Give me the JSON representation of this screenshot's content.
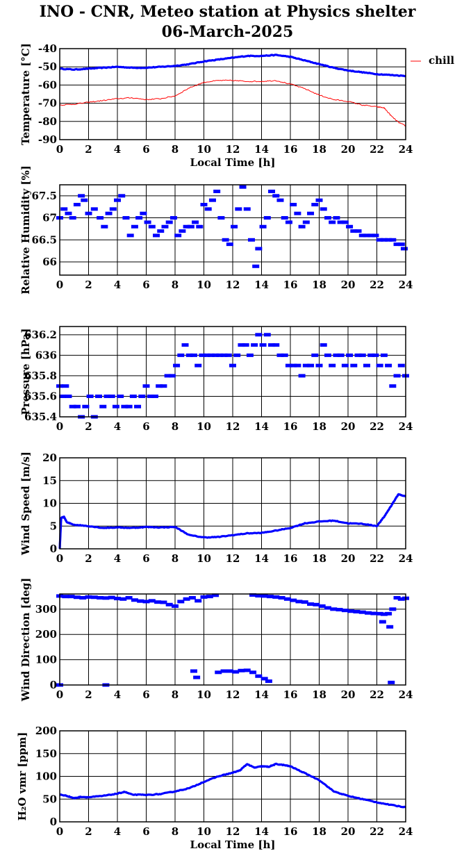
{
  "figure": {
    "title_line1": "INO - CNR, Meteo station at Physics shelter",
    "title_line2": "06-March-2025"
  },
  "colors": {
    "main_series": "#0000ff",
    "chill_series": "#ff0000",
    "grid": "#000000"
  },
  "chart_data": [
    {
      "type": "line",
      "ylabel": "Temperature [°C]",
      "xlabel": "Local Time [h]",
      "xlim": [
        0,
        24
      ],
      "ylim": [
        -90,
        -40
      ],
      "xticks": [
        0,
        2,
        4,
        6,
        8,
        10,
        12,
        14,
        16,
        18,
        20,
        22,
        24
      ],
      "yticks": [
        -90,
        -80,
        -70,
        -60,
        -50,
        -40
      ],
      "grid": true,
      "legend": "right",
      "series": [
        {
          "name": "",
          "color": "#0000ff",
          "style": "thick",
          "x": [
            0,
            1,
            2,
            3,
            4,
            5,
            6,
            7,
            8,
            9,
            10,
            11,
            12,
            13,
            14,
            15,
            16,
            17,
            18,
            19,
            20,
            21,
            22,
            23,
            24
          ],
          "y": [
            -51,
            -51.5,
            -51,
            -50.5,
            -50,
            -50.5,
            -50.5,
            -50,
            -49.5,
            -48.5,
            -47,
            -46,
            -45,
            -44,
            -44,
            -43.5,
            -44.5,
            -46.5,
            -48.5,
            -50.5,
            -52,
            -53,
            -54,
            -54.5,
            -55
          ]
        },
        {
          "name": "chill",
          "color": "#ff0000",
          "style": "thin",
          "x": [
            0,
            1,
            2,
            3,
            4,
            5,
            6,
            7,
            8,
            9,
            10,
            11,
            12,
            13,
            14,
            15,
            16,
            17,
            18,
            19,
            20,
            21,
            22,
            22.5,
            23,
            23.5,
            24
          ],
          "y": [
            -71,
            -70.5,
            -69.5,
            -68.5,
            -67.5,
            -67,
            -68,
            -67.5,
            -66,
            -61.5,
            -58.5,
            -57.5,
            -57.5,
            -58,
            -58,
            -57.5,
            -59.5,
            -62,
            -65.5,
            -68,
            -69,
            -71,
            -72,
            -72.5,
            -77,
            -80.5,
            -82.5
          ]
        }
      ]
    },
    {
      "type": "scatter",
      "ylabel": "Relative Humidity [%]",
      "xlim": [
        0,
        24
      ],
      "ylim": [
        65.7,
        67.75
      ],
      "xticks": [
        0,
        2,
        4,
        6,
        8,
        10,
        12,
        14,
        16,
        18,
        20,
        22,
        24
      ],
      "yticks": [
        66,
        66.5,
        67,
        67.5
      ],
      "ytick_labels": [
        "66",
        "66.5",
        "67",
        "67.5"
      ],
      "grid": true,
      "series": [
        {
          "name": "",
          "color": "#0000ff",
          "x": [
            0,
            0.3,
            0.6,
            0.9,
            1.2,
            1.5,
            1.7,
            2.0,
            2.4,
            2.8,
            3.1,
            3.4,
            3.7,
            4.0,
            4.3,
            4.6,
            4.9,
            5.2,
            5.5,
            5.8,
            6.1,
            6.4,
            6.7,
            7.0,
            7.3,
            7.6,
            7.9,
            8.2,
            8.5,
            8.8,
            9.1,
            9.4,
            9.7,
            10.0,
            10.3,
            10.6,
            10.9,
            11.2,
            11.5,
            11.8,
            12.1,
            12.4,
            12.7,
            13.0,
            13.3,
            13.6,
            13.8,
            14.1,
            14.4,
            14.7,
            15.0,
            15.3,
            15.6,
            15.9,
            16.2,
            16.5,
            16.8,
            17.1,
            17.4,
            17.7,
            18.0,
            18.3,
            18.6,
            18.9,
            19.2,
            19.5,
            19.8,
            20.1,
            20.4,
            20.7,
            21.0,
            21.3,
            21.6,
            21.9,
            22.2,
            22.5,
            22.8,
            23.1,
            23.4,
            23.7,
            23.9
          ],
          "y": [
            67.0,
            67.2,
            67.1,
            67.0,
            67.3,
            67.5,
            67.4,
            67.1,
            67.2,
            67.0,
            66.8,
            67.1,
            67.2,
            67.4,
            67.5,
            67.0,
            66.6,
            66.8,
            67.0,
            67.1,
            66.9,
            66.8,
            66.6,
            66.7,
            66.8,
            66.9,
            67.0,
            66.6,
            66.7,
            66.8,
            66.8,
            66.9,
            66.8,
            67.3,
            67.2,
            67.4,
            67.6,
            67.0,
            66.5,
            66.4,
            66.8,
            67.2,
            67.7,
            67.2,
            66.5,
            65.9,
            66.3,
            66.8,
            67.0,
            67.6,
            67.5,
            67.4,
            67.0,
            66.9,
            67.3,
            67.1,
            66.8,
            66.9,
            67.1,
            67.3,
            67.4,
            67.2,
            67.0,
            66.9,
            67.0,
            66.9,
            66.9,
            66.8,
            66.7,
            66.7,
            66.6,
            66.6,
            66.6,
            66.6,
            66.5,
            66.5,
            66.5,
            66.5,
            66.4,
            66.4,
            66.3
          ]
        }
      ]
    },
    {
      "type": "scatter",
      "ylabel": "Pressure [hPa]",
      "xlim": [
        0,
        24
      ],
      "ylim": [
        635.4,
        636.28
      ],
      "xticks": [
        0,
        2,
        4,
        6,
        8,
        10,
        12,
        14,
        16,
        18,
        20,
        22,
        24
      ],
      "yticks": [
        635.4,
        635.6,
        635.8,
        636,
        636.2
      ],
      "ytick_labels": [
        "635.4",
        "635.6",
        "635.8",
        "636",
        "636.2"
      ],
      "grid": true,
      "series": [
        {
          "name": "",
          "color": "#0000ff",
          "x": [
            0.0,
            0.2,
            0.4,
            0.6,
            0.9,
            1.2,
            1.5,
            1.8,
            2.1,
            2.4,
            2.7,
            3.0,
            3.3,
            3.6,
            3.9,
            4.2,
            4.5,
            4.8,
            5.1,
            5.4,
            5.7,
            6.0,
            6.3,
            6.6,
            6.9,
            7.2,
            7.5,
            7.8,
            8.1,
            8.4,
            8.7,
            9.0,
            9.3,
            9.6,
            9.9,
            10.2,
            10.5,
            10.8,
            11.1,
            11.4,
            11.7,
            12.0,
            12.3,
            12.6,
            12.9,
            13.2,
            13.5,
            13.8,
            14.1,
            14.4,
            14.7,
            15.0,
            15.3,
            15.6,
            15.9,
            16.2,
            16.5,
            16.8,
            17.1,
            17.4,
            17.7,
            18.0,
            18.3,
            18.6,
            18.9,
            19.2,
            19.5,
            19.8,
            20.1,
            20.4,
            20.7,
            21.0,
            21.3,
            21.6,
            21.9,
            22.2,
            22.5,
            22.8,
            23.1,
            23.4,
            23.7,
            24.0
          ],
          "y": [
            635.7,
            635.6,
            635.7,
            635.6,
            635.5,
            635.5,
            635.4,
            635.5,
            635.6,
            635.4,
            635.6,
            635.5,
            635.6,
            635.6,
            635.5,
            635.6,
            635.5,
            635.5,
            635.6,
            635.5,
            635.6,
            635.7,
            635.6,
            635.6,
            635.7,
            635.7,
            635.8,
            635.8,
            635.9,
            636.0,
            636.1,
            636.0,
            636.0,
            635.9,
            636.0,
            636.0,
            636.0,
            636.0,
            636.0,
            636.0,
            636.0,
            635.9,
            636.0,
            636.1,
            636.1,
            636.0,
            636.1,
            636.2,
            636.1,
            636.2,
            636.1,
            636.1,
            636.0,
            636.0,
            635.9,
            635.9,
            635.9,
            635.8,
            635.9,
            635.9,
            636.0,
            635.9,
            636.1,
            636.0,
            635.9,
            636.0,
            636.0,
            635.9,
            636.0,
            635.9,
            636.0,
            636.0,
            635.9,
            636.0,
            636.0,
            635.9,
            636.0,
            635.9,
            635.7,
            635.8,
            635.9,
            635.8
          ]
        }
      ]
    },
    {
      "type": "line",
      "ylabel": "Wind Speed [m/s]",
      "xlim": [
        0,
        24
      ],
      "ylim": [
        0,
        20
      ],
      "xticks": [
        0,
        2,
        4,
        6,
        8,
        10,
        12,
        14,
        16,
        18,
        20,
        22,
        24
      ],
      "yticks": [
        0,
        5,
        10,
        15,
        20
      ],
      "grid": true,
      "series": [
        {
          "name": "",
          "color": "#0000ff",
          "style": "thick",
          "x": [
            0,
            0.1,
            0.3,
            0.5,
            1,
            2,
            3,
            4,
            5,
            6,
            7,
            8,
            9,
            10,
            11,
            12,
            13,
            14,
            15,
            16,
            17,
            18,
            19,
            20,
            21,
            22,
            22.5,
            23,
            23.5,
            24
          ],
          "y": [
            0,
            6.8,
            7,
            5.8,
            5.3,
            5,
            4.6,
            4.7,
            4.6,
            4.8,
            4.7,
            4.8,
            3,
            2.5,
            2.6,
            3,
            3.4,
            3.5,
            4,
            4.6,
            5.6,
            6,
            6.2,
            5.6,
            5.5,
            5,
            7,
            9.5,
            12,
            11.5
          ]
        }
      ]
    },
    {
      "type": "scatter",
      "ylabel": "Wind Direction [deg]",
      "xlim": [
        0,
        24
      ],
      "ylim": [
        0,
        360
      ],
      "xticks": [
        0,
        2,
        4,
        6,
        8,
        10,
        12,
        14,
        16,
        18,
        20,
        22,
        24
      ],
      "yticks": [
        0,
        100,
        200,
        300
      ],
      "grid": true,
      "series": [
        {
          "name": "",
          "color": "#0000ff",
          "x": [
            0.0,
            0.4,
            0.8,
            1.2,
            1.6,
            2.0,
            2.4,
            2.8,
            3.2,
            3.6,
            4.0,
            4.4,
            4.8,
            5.2,
            5.6,
            6.0,
            6.4,
            6.8,
            7.2,
            7.6,
            8.0,
            8.4,
            8.8,
            9.2,
            9.6,
            10.0,
            10.4,
            10.8,
            13.4,
            13.8,
            14.2,
            14.6,
            15.0,
            15.4,
            15.8,
            16.2,
            16.6,
            17.0,
            17.4,
            17.8,
            18.2,
            18.6,
            19.0,
            19.4,
            19.8,
            20.2,
            20.6,
            21.0,
            21.4,
            21.8,
            22.2,
            22.5,
            22.8,
            23.1,
            23.4,
            23.7,
            24.0,
            9.3,
            9.5,
            11.0,
            11.4,
            11.8,
            12.2,
            12.6,
            13.0,
            13.4,
            13.8,
            14.2,
            14.5,
            3.2,
            23.0,
            0.0,
            22.4,
            22.9
          ],
          "y": [
            352,
            350,
            350,
            347,
            345,
            348,
            347,
            345,
            344,
            346,
            342,
            340,
            345,
            336,
            332,
            330,
            333,
            328,
            327,
            318,
            312,
            330,
            340,
            345,
            333,
            348,
            350,
            355,
            356,
            353,
            352,
            350,
            348,
            345,
            340,
            335,
            330,
            328,
            320,
            318,
            312,
            305,
            300,
            298,
            295,
            292,
            290,
            288,
            285,
            283,
            282,
            280,
            282,
            300,
            345,
            340,
            343,
            55,
            30,
            50,
            55,
            55,
            52,
            57,
            58,
            50,
            35,
            25,
            15,
            0,
            10,
            0,
            250,
            230
          ]
        }
      ]
    },
    {
      "type": "line",
      "ylabel": "H₂O vmr [ppm]",
      "xlabel": "Local Time [h]",
      "xlim": [
        0,
        24
      ],
      "ylim": [
        0,
        200
      ],
      "xticks": [
        0,
        2,
        4,
        6,
        8,
        10,
        12,
        14,
        16,
        18,
        20,
        22,
        24
      ],
      "yticks": [
        0,
        50,
        100,
        150,
        200
      ],
      "grid": true,
      "series": [
        {
          "name": "",
          "color": "#0000ff",
          "style": "thick",
          "x": [
            0,
            0.5,
            1,
            1.5,
            2,
            3,
            4,
            4.5,
            5,
            6,
            7,
            8,
            9,
            10,
            11,
            12,
            12.5,
            13,
            13.5,
            14,
            14.5,
            15,
            15.5,
            16,
            17,
            18,
            19,
            20,
            21,
            22,
            23,
            24
          ],
          "y": [
            60,
            57,
            52,
            55,
            54,
            57,
            62,
            66,
            60,
            59,
            61,
            67,
            74,
            88,
            100,
            108,
            113,
            127,
            119,
            122,
            121,
            127,
            125,
            122,
            107,
            92,
            67,
            57,
            50,
            43,
            37,
            32
          ]
        }
      ]
    }
  ]
}
